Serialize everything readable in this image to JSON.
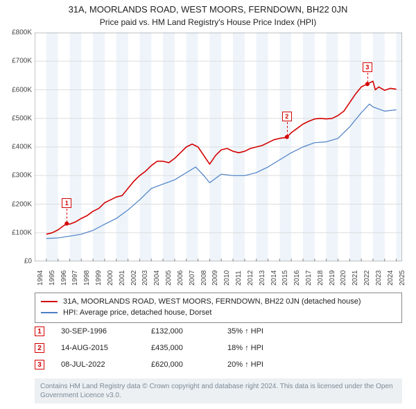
{
  "title": "31A, MOORLANDS ROAD, WEST MOORS, FERNDOWN, BH22 0JN",
  "subtitle": "Price paid vs. HM Land Registry's House Price Index (HPI)",
  "chart": {
    "type": "line",
    "background_color": "#ffffff",
    "shaded_band_color": "#eef4fa",
    "grid_color": "#dddddd",
    "axis_color": "#888888",
    "x_start": 1994,
    "x_end": 2025.5,
    "xticks": [
      1994,
      1995,
      1996,
      1997,
      1998,
      1999,
      2000,
      2001,
      2002,
      2003,
      2004,
      2005,
      2006,
      2007,
      2008,
      2009,
      2010,
      2011,
      2012,
      2013,
      2014,
      2015,
      2016,
      2017,
      2018,
      2019,
      2020,
      2021,
      2022,
      2023,
      2024,
      2025
    ],
    "ylim": [
      0,
      800000
    ],
    "yticks": [
      0,
      100000,
      200000,
      300000,
      400000,
      500000,
      600000,
      700000,
      800000
    ],
    "ytick_labels": [
      "£0",
      "£100K",
      "£200K",
      "£300K",
      "£400K",
      "£500K",
      "£600K",
      "£700K",
      "£800K"
    ],
    "label_fontsize": 10,
    "shaded_bands": [
      [
        1995,
        1996
      ],
      [
        1997,
        1998
      ],
      [
        1999,
        2000
      ],
      [
        2001,
        2002
      ],
      [
        2003,
        2004
      ],
      [
        2005,
        2006
      ],
      [
        2007,
        2008
      ],
      [
        2009,
        2010
      ],
      [
        2011,
        2012
      ],
      [
        2013,
        2014
      ],
      [
        2015,
        2016
      ],
      [
        2017,
        2018
      ],
      [
        2019,
        2020
      ],
      [
        2021,
        2022
      ],
      [
        2023,
        2024
      ],
      [
        2025,
        2025.5
      ]
    ],
    "series": [
      {
        "name": "property",
        "color": "#d40000",
        "width": 1.6,
        "points": [
          [
            1995.0,
            95000
          ],
          [
            1995.5,
            100000
          ],
          [
            1996.0,
            110000
          ],
          [
            1996.5,
            125000
          ],
          [
            1996.75,
            132000
          ],
          [
            1997.0,
            130000
          ],
          [
            1997.5,
            138000
          ],
          [
            1998.0,
            150000
          ],
          [
            1998.5,
            160000
          ],
          [
            1999.0,
            175000
          ],
          [
            1999.5,
            185000
          ],
          [
            2000.0,
            205000
          ],
          [
            2000.5,
            215000
          ],
          [
            2001.0,
            225000
          ],
          [
            2001.5,
            230000
          ],
          [
            2002.0,
            255000
          ],
          [
            2002.5,
            280000
          ],
          [
            2003.0,
            300000
          ],
          [
            2003.5,
            315000
          ],
          [
            2004.0,
            335000
          ],
          [
            2004.5,
            350000
          ],
          [
            2005.0,
            350000
          ],
          [
            2005.5,
            345000
          ],
          [
            2006.0,
            360000
          ],
          [
            2006.5,
            380000
          ],
          [
            2007.0,
            400000
          ],
          [
            2007.5,
            410000
          ],
          [
            2008.0,
            400000
          ],
          [
            2008.5,
            370000
          ],
          [
            2009.0,
            340000
          ],
          [
            2009.5,
            370000
          ],
          [
            2010.0,
            390000
          ],
          [
            2010.5,
            395000
          ],
          [
            2011.0,
            385000
          ],
          [
            2011.5,
            380000
          ],
          [
            2012.0,
            385000
          ],
          [
            2012.5,
            395000
          ],
          [
            2013.0,
            400000
          ],
          [
            2013.5,
            405000
          ],
          [
            2014.0,
            415000
          ],
          [
            2014.5,
            425000
          ],
          [
            2015.0,
            430000
          ],
          [
            2015.5,
            433000
          ],
          [
            2015.62,
            435000
          ],
          [
            2016.0,
            450000
          ],
          [
            2016.5,
            465000
          ],
          [
            2017.0,
            480000
          ],
          [
            2017.5,
            490000
          ],
          [
            2018.0,
            498000
          ],
          [
            2018.5,
            500000
          ],
          [
            2019.0,
            498000
          ],
          [
            2019.5,
            500000
          ],
          [
            2020.0,
            510000
          ],
          [
            2020.5,
            525000
          ],
          [
            2021.0,
            555000
          ],
          [
            2021.5,
            585000
          ],
          [
            2022.0,
            610000
          ],
          [
            2022.5,
            620000
          ],
          [
            2023.0,
            630000
          ],
          [
            2023.2,
            600000
          ],
          [
            2023.5,
            610000
          ],
          [
            2024.0,
            598000
          ],
          [
            2024.5,
            605000
          ],
          [
            2025.0,
            602000
          ]
        ]
      },
      {
        "name": "hpi",
        "color": "#4a7fc4",
        "width": 1.2,
        "points": [
          [
            1995.0,
            80000
          ],
          [
            1996.0,
            82000
          ],
          [
            1997.0,
            88000
          ],
          [
            1998.0,
            95000
          ],
          [
            1999.0,
            108000
          ],
          [
            2000.0,
            130000
          ],
          [
            2001.0,
            150000
          ],
          [
            2002.0,
            180000
          ],
          [
            2003.0,
            215000
          ],
          [
            2004.0,
            255000
          ],
          [
            2005.0,
            270000
          ],
          [
            2006.0,
            285000
          ],
          [
            2007.0,
            310000
          ],
          [
            2007.8,
            330000
          ],
          [
            2008.5,
            300000
          ],
          [
            2009.0,
            275000
          ],
          [
            2010.0,
            305000
          ],
          [
            2011.0,
            300000
          ],
          [
            2012.0,
            300000
          ],
          [
            2013.0,
            310000
          ],
          [
            2014.0,
            330000
          ],
          [
            2015.0,
            355000
          ],
          [
            2016.0,
            380000
          ],
          [
            2017.0,
            400000
          ],
          [
            2018.0,
            415000
          ],
          [
            2019.0,
            418000
          ],
          [
            2020.0,
            430000
          ],
          [
            2021.0,
            470000
          ],
          [
            2022.0,
            520000
          ],
          [
            2022.7,
            550000
          ],
          [
            2023.0,
            540000
          ],
          [
            2024.0,
            525000
          ],
          [
            2025.0,
            530000
          ]
        ]
      }
    ],
    "markers": [
      {
        "id": "1",
        "x": 1996.75,
        "y": 132000,
        "badge_offset_y": -30
      },
      {
        "id": "2",
        "x": 2015.62,
        "y": 435000,
        "badge_offset_y": -30
      },
      {
        "id": "3",
        "x": 2022.52,
        "y": 620000,
        "badge_offset_y": -24
      }
    ],
    "marker_dot_color": "#d40000",
    "marker_dot_radius": 3
  },
  "legend": {
    "items": [
      {
        "color": "#d40000",
        "label": "31A, MOORLANDS ROAD, WEST MOORS, FERNDOWN, BH22 0JN (detached house)"
      },
      {
        "color": "#4a7fc4",
        "label": "HPI: Average price, detached house, Dorset"
      }
    ]
  },
  "marker_table": {
    "col_widths": [
      "40px",
      "130px",
      "110px",
      "auto"
    ],
    "rows": [
      {
        "id": "1",
        "date": "30-SEP-1996",
        "price": "£132,000",
        "delta": "35% ↑ HPI"
      },
      {
        "id": "2",
        "date": "14-AUG-2015",
        "price": "£435,000",
        "delta": "18% ↑ HPI"
      },
      {
        "id": "3",
        "date": "08-JUL-2022",
        "price": "£620,000",
        "delta": "20% ↑ HPI"
      }
    ]
  },
  "footer": "Contains HM Land Registry data © Crown copyright and database right 2024. This data is licensed under the Open Government Licence v3.0."
}
